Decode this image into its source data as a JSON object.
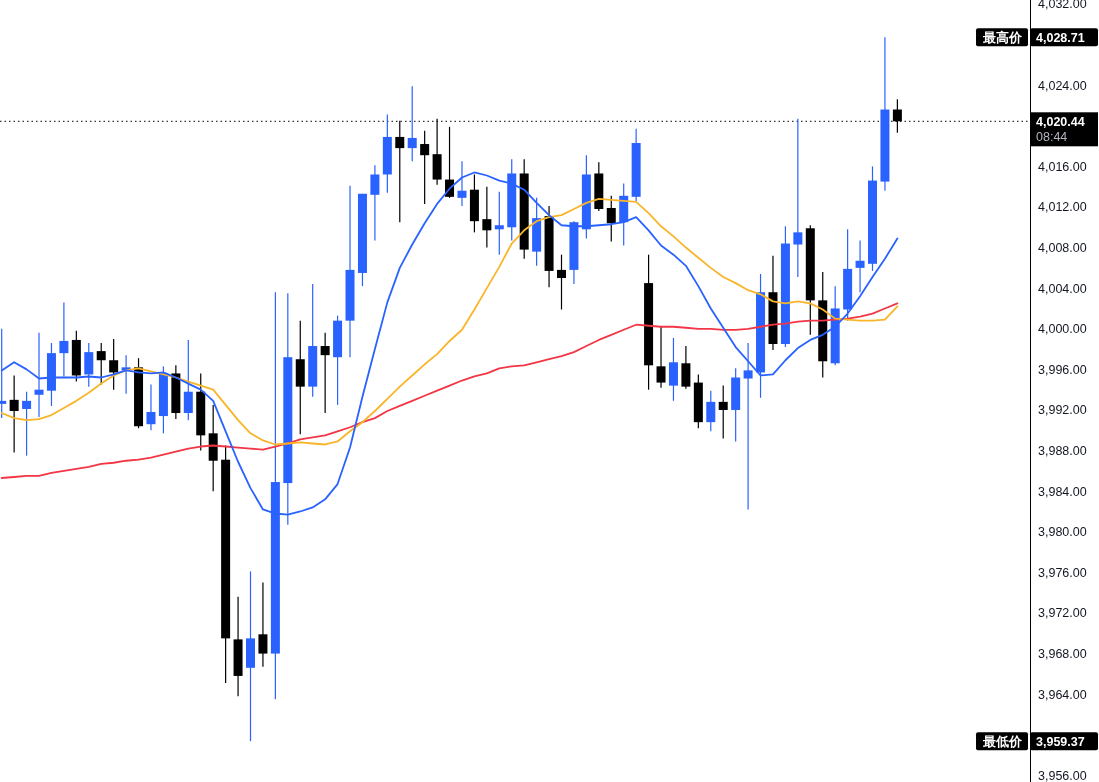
{
  "chart_data": {
    "type": "candlestick",
    "categories": [
      null,
      null,
      null,
      null,
      null,
      null,
      null,
      null,
      null,
      null,
      null,
      null,
      null,
      null,
      null,
      null,
      null,
      null,
      null,
      null,
      null,
      null,
      null,
      null,
      null,
      null,
      null,
      null,
      null,
      null,
      null,
      null,
      null,
      null,
      null,
      null,
      null,
      null,
      null,
      null,
      null,
      null,
      null,
      null,
      null,
      null,
      null,
      null,
      null,
      null,
      null,
      null,
      null,
      null,
      null,
      null,
      null,
      null,
      null,
      null,
      null,
      null,
      null,
      null,
      null,
      null,
      null,
      null,
      null,
      null,
      null,
      null,
      null
    ],
    "ohlc": [
      [
        3992.6,
        4000.0,
        3991.2,
        3992.9
      ],
      [
        3993.0,
        3995.4,
        3987.8,
        3991.9
      ],
      [
        3992.1,
        3993.8,
        3987.5,
        3992.9
      ],
      [
        3993.5,
        3999.6,
        3991.3,
        3994.0
      ],
      [
        3993.9,
        3998.6,
        3992.4,
        3997.6
      ],
      [
        3997.6,
        4002.6,
        3995.3,
        3998.8
      ],
      [
        3998.9,
        3999.8,
        3994.8,
        3995.4
      ],
      [
        3995.5,
        3998.6,
        3994.3,
        3997.7
      ],
      [
        3997.8,
        3998.6,
        3994.5,
        3996.9
      ],
      [
        3996.9,
        3999.0,
        3994.0,
        3995.7
      ],
      [
        3995.9,
        3997.4,
        3993.6,
        3996.2
      ],
      [
        3996.2,
        3997.1,
        3990.2,
        3990.4
      ],
      [
        3990.6,
        3994.5,
        3990.0,
        3991.8
      ],
      [
        3991.4,
        3996.3,
        3989.7,
        3995.6
      ],
      [
        3995.6,
        3996.4,
        3991.1,
        3991.7
      ],
      [
        3991.7,
        3998.9,
        3991.0,
        3993.8
      ],
      [
        3993.8,
        3995.6,
        3988.0,
        3989.5
      ],
      [
        3989.7,
        3992.5,
        3984.0,
        3987.0
      ],
      [
        3987.1,
        3988.5,
        3965.1,
        3969.5
      ],
      [
        3969.4,
        3973.6,
        3963.8,
        3965.8
      ],
      [
        3966.6,
        3976.1,
        3959.37,
        3969.5
      ],
      [
        3969.9,
        3975.0,
        3966.7,
        3968.0
      ],
      [
        3968.0,
        4003.6,
        3963.5,
        3984.9
      ],
      [
        3984.8,
        4003.5,
        3980.7,
        3997.2
      ],
      [
        3997.0,
        4000.8,
        3989.6,
        3994.3
      ],
      [
        3994.3,
        4004.4,
        3993.3,
        3998.3
      ],
      [
        3998.3,
        3999.6,
        3991.7,
        3997.4
      ],
      [
        3997.2,
        4001.3,
        3992.5,
        4000.8
      ],
      [
        4000.8,
        4014.1,
        3997.2,
        4005.8
      ],
      [
        4005.5,
        4013.3,
        4004.2,
        4013.3
      ],
      [
        4013.2,
        4016.1,
        4008.7,
        4015.2
      ],
      [
        4015.2,
        4021.1,
        4013.4,
        4018.9
      ],
      [
        4018.9,
        4020.5,
        4010.5,
        4017.8
      ],
      [
        4017.8,
        4023.9,
        4016.5,
        4018.8
      ],
      [
        4018.2,
        4019.5,
        4012.3,
        4017.1
      ],
      [
        4017.2,
        4020.7,
        4014.2,
        4014.7
      ],
      [
        4014.7,
        4019.9,
        4012.9,
        4013.0
      ],
      [
        4012.9,
        4016.5,
        4012.1,
        4013.6
      ],
      [
        4013.7,
        4015.2,
        4009.5,
        4010.6
      ],
      [
        4010.8,
        4014.0,
        4008.0,
        4009.7
      ],
      [
        4009.8,
        4013.5,
        4007.3,
        4010.2
      ],
      [
        4010.0,
        4016.7,
        4008.7,
        4015.3
      ],
      [
        4015.3,
        4016.7,
        4006.9,
        4007.8
      ],
      [
        4007.6,
        4012.9,
        4006.2,
        4010.9
      ],
      [
        4011.1,
        4012.1,
        4004.1,
        4005.7
      ],
      [
        4005.8,
        4007.3,
        4001.9,
        4005.0
      ],
      [
        4005.8,
        4010.6,
        4004.4,
        4010.5
      ],
      [
        4009.8,
        4017.1,
        4008.9,
        4015.2
      ],
      [
        4015.3,
        4016.4,
        4011.6,
        4011.8
      ],
      [
        4011.9,
        4013.1,
        4008.6,
        4010.4
      ],
      [
        4010.5,
        4014.3,
        4008.2,
        4013.1
      ],
      [
        4013.0,
        4019.7,
        4012.6,
        4018.3
      ],
      [
        4004.5,
        4007.3,
        3994.0,
        3996.4
      ],
      [
        3996.3,
        4000.2,
        3994.2,
        3994.7
      ],
      [
        3994.4,
        3999.1,
        3992.9,
        3996.7
      ],
      [
        3996.6,
        3998.3,
        3994.1,
        3994.3
      ],
      [
        3994.7,
        3995.5,
        3990.2,
        3990.8
      ],
      [
        3990.8,
        3993.9,
        3989.9,
        3992.8
      ],
      [
        3992.8,
        3994.4,
        3989.2,
        3992.0
      ],
      [
        3992.0,
        3996.1,
        3988.9,
        3995.2
      ],
      [
        3995.1,
        3998.6,
        3982.2,
        3995.9
      ],
      [
        3995.7,
        4005.4,
        3993.2,
        4003.6
      ],
      [
        4003.6,
        4007.2,
        3997.9,
        3998.5
      ],
      [
        3998.5,
        4010.1,
        3998.2,
        4008.4
      ],
      [
        4008.3,
        4020.7,
        4005.1,
        4009.5
      ],
      [
        4009.9,
        4010.2,
        3999.4,
        4002.8
      ],
      [
        4002.8,
        4005.6,
        3995.2,
        3996.8
      ],
      [
        3996.6,
        4004.2,
        3996.4,
        4002.0
      ],
      [
        4001.9,
        4009.8,
        4000.8,
        4005.9
      ],
      [
        4006.0,
        4008.7,
        4003.6,
        4006.7
      ],
      [
        4006.4,
        4016.0,
        4005.7,
        4014.6
      ],
      [
        4014.5,
        4028.71,
        4013.6,
        4021.6
      ],
      [
        4021.6,
        4022.6,
        4019.3,
        4020.44
      ]
    ],
    "colors": [
      "#2962ff",
      "#000000",
      "#2962ff",
      "#2962ff",
      "#2962ff",
      "#2962ff",
      "#000000",
      "#2962ff",
      "#000000",
      "#000000",
      "#2962ff",
      "#000000",
      "#2962ff",
      "#2962ff",
      "#000000",
      "#2962ff",
      "#000000",
      "#000000",
      "#000000",
      "#000000",
      "#2962ff",
      "#000000",
      "#2962ff",
      "#2962ff",
      "#000000",
      "#2962ff",
      "#000000",
      "#2962ff",
      "#2962ff",
      "#2962ff",
      "#2962ff",
      "#2962ff",
      "#000000",
      "#2962ff",
      "#000000",
      "#000000",
      "#000000",
      "#2962ff",
      "#000000",
      "#000000",
      "#2962ff",
      "#2962ff",
      "#000000",
      "#2962ff",
      "#000000",
      "#000000",
      "#2962ff",
      "#2962ff",
      "#000000",
      "#000000",
      "#2962ff",
      "#2962ff",
      "#000000",
      "#000000",
      "#2962ff",
      "#000000",
      "#000000",
      "#2962ff",
      "#000000",
      "#2962ff",
      "#2962ff",
      "#2962ff",
      "#000000",
      "#2962ff",
      "#2962ff",
      "#000000",
      "#000000",
      "#2962ff",
      "#2962ff",
      "#2962ff",
      "#2962ff",
      "#2962ff",
      "#000000"
    ],
    "series": [
      {
        "type": "line",
        "color": "#f23645",
        "values": [
          3985.3,
          3985.4,
          3985.5,
          3985.5,
          3985.8,
          3986.0,
          3986.2,
          3986.4,
          3986.7,
          3986.8,
          3987.0,
          3987.1,
          3987.3,
          3987.6,
          3987.9,
          3988.2,
          3988.4,
          3988.5,
          3988.4,
          3988.3,
          3988.2,
          3988.1,
          3988.4,
          3988.7,
          3989.1,
          3989.3,
          3989.5,
          3989.9,
          3990.3,
          3990.8,
          3991.2,
          3991.9,
          3992.4,
          3992.9,
          3993.4,
          3993.9,
          3994.4,
          3994.9,
          3995.3,
          3995.6,
          3996.1,
          3996.3,
          3996.4,
          3996.7,
          3997.0,
          3997.3,
          3997.7,
          3998.3,
          3998.9,
          3999.4,
          3999.9,
          4000.4,
          4000.3,
          4000.2,
          4000.2,
          4000.1,
          4000.0,
          4000.0,
          3999.9,
          3999.9,
          4000.0,
          4000.2,
          4000.4,
          4000.5,
          4000.7,
          4000.8,
          4000.8,
          4000.9,
          4001.0,
          4001.2,
          4001.5,
          4002.0,
          4002.5
        ]
      },
      {
        "type": "line",
        "color": "#f9b52a",
        "values": [
          3991.7,
          3991.2,
          3991.0,
          3991.1,
          3991.5,
          3992.2,
          3992.9,
          3993.7,
          3994.6,
          3995.4,
          3995.9,
          3996.1,
          3995.8,
          3995.5,
          3995.2,
          3994.8,
          3994.4,
          3994.0,
          3992.5,
          3991.0,
          3989.7,
          3989.0,
          3988.6,
          3988.7,
          3988.8,
          3988.7,
          3988.6,
          3988.9,
          3989.9,
          3990.8,
          3991.9,
          3993.1,
          3994.3,
          3995.4,
          3996.5,
          3997.5,
          3998.8,
          3999.9,
          4001.9,
          4004.0,
          4006.1,
          4008.4,
          4009.7,
          4010.6,
          4011.0,
          4011.2,
          4011.8,
          4012.4,
          4012.8,
          4012.7,
          4012.6,
          4012.5,
          4011.4,
          4010.1,
          4009.1,
          4008.0,
          4007.0,
          4006.0,
          4005.1,
          4004.5,
          4003.8,
          4003.4,
          4002.7,
          4002.5,
          4002.7,
          4002.5,
          4001.9,
          4001.0,
          4000.9,
          4000.8,
          4000.8,
          4000.9,
          4002.2
        ]
      },
      {
        "type": "line",
        "color": "#2962ff",
        "values": [
          3995.9,
          3996.7,
          3996.0,
          3995.1,
          3995.2,
          3995.2,
          3995.2,
          3995.3,
          3995.2,
          3995.5,
          3995.9,
          3995.7,
          3995.6,
          3995.7,
          3995.2,
          3994.6,
          3994.0,
          3992.9,
          3989.9,
          3986.9,
          3984.3,
          3982.2,
          3981.8,
          3981.7,
          3982.0,
          3982.4,
          3983.2,
          3984.7,
          3988.3,
          3993.3,
          3998.0,
          4002.6,
          4006.0,
          4008.3,
          4010.4,
          4012.3,
          4013.8,
          4014.9,
          4015.4,
          4015.1,
          4014.6,
          4014.3,
          4013.7,
          4012.4,
          4011.2,
          4010.2,
          4010.1,
          4010.1,
          4010.2,
          4010.3,
          4010.5,
          4011.0,
          4009.7,
          4008.2,
          4007.3,
          4006.2,
          4004.2,
          4002.0,
          4000.1,
          3998.2,
          3996.8,
          3995.4,
          3995.5,
          3996.9,
          3998.1,
          3998.9,
          3999.4,
          4000.2,
          4001.5,
          4003.2,
          4005.1,
          4006.9,
          4008.9
        ]
      }
    ],
    "ylim": [
      3955.35,
      4032.39
    ],
    "yticks": [
      {
        "value": 4032,
        "label": "4,032.00"
      },
      {
        "value": 4024,
        "label": "4,024.00"
      },
      {
        "value": 4016,
        "label": "4,016.00"
      },
      {
        "value": 4012,
        "label": "4,012.00"
      },
      {
        "value": 4008,
        "label": "4,008.00"
      },
      {
        "value": 4004,
        "label": "4,004.00"
      },
      {
        "value": 4000,
        "label": "4,000.00"
      },
      {
        "value": 3996,
        "label": "3,996.00"
      },
      {
        "value": 3992,
        "label": "3,992.00"
      },
      {
        "value": 3988,
        "label": "3,988.00"
      },
      {
        "value": 3984,
        "label": "3,984.00"
      },
      {
        "value": 3980,
        "label": "3,980.00"
      },
      {
        "value": 3976,
        "label": "3,976.00"
      },
      {
        "value": 3972,
        "label": "3,972.00"
      },
      {
        "value": 3968,
        "label": "3,968.00"
      },
      {
        "value": 3964,
        "label": "3,964.00"
      },
      {
        "value": 3956,
        "label": "3,956.00"
      }
    ],
    "tick_labels": "y",
    "ref_lines": [
      {
        "axis": "y",
        "value": 4020.44,
        "label": "4,020.44",
        "line_style": "dotted",
        "color": "#000000"
      }
    ],
    "annotations": [
      "最高价",
      "4,028.71",
      "最低价",
      "3,959.37",
      "08:44"
    ]
  }
}
